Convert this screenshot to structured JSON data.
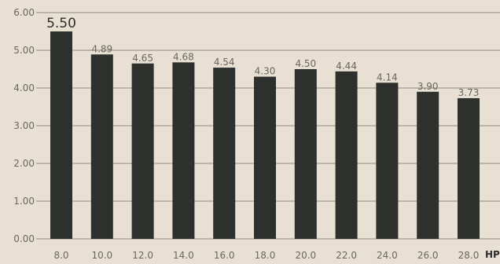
{
  "chart_data": {
    "type": "bar",
    "x_unit": "HP",
    "categories": [
      "8.0",
      "10.0",
      "12.0",
      "14.0",
      "16.0",
      "18.0",
      "20.0",
      "22.0",
      "24.0",
      "26.0",
      "28.0"
    ],
    "values": [
      5.5,
      4.89,
      4.65,
      4.68,
      4.54,
      4.3,
      4.5,
      4.44,
      4.14,
      3.9,
      3.73
    ],
    "value_labels": [
      "5.50",
      "4.89",
      "4.65",
      "4.68",
      "4.54",
      "4.30",
      "4.50",
      "4.44",
      "4.14",
      "3.90",
      "3.73"
    ],
    "highlight_max": true,
    "ylim": [
      0,
      6
    ],
    "y_ticks": [
      "0.00",
      "1.00",
      "2.00",
      "3.00",
      "4.00",
      "5.00",
      "6.00"
    ],
    "grid": true,
    "colors": {
      "background": "#e8e0d3",
      "bar": "#2e302e",
      "grid": "#8f8a82",
      "label": "#6b6660"
    }
  }
}
